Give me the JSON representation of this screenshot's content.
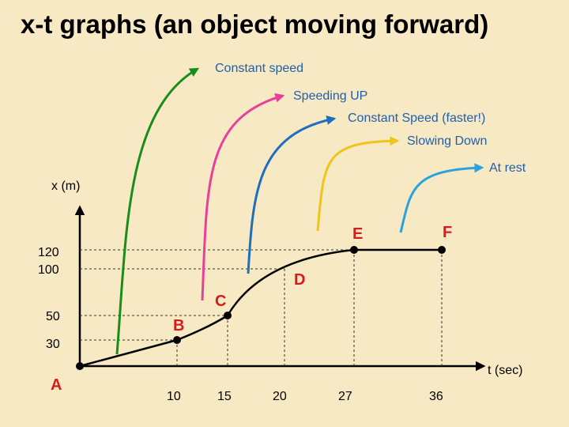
{
  "title": "x-t graphs (an object moving forward)",
  "colors": {
    "background": "#f7e9c4",
    "constant_speed": "#1a8c1a",
    "speeding_up": "#e8409a",
    "constant_speed_faster": "#1f6fbd",
    "slowing_down": "#f0c419",
    "at_rest": "#29a3e0",
    "callout_text": "#1f5fae",
    "point_label": "#d41c1c"
  },
  "callouts": {
    "constant_speed": "Constant speed",
    "speeding_up": "Speeding UP",
    "constant_speed_faster": "Constant Speed (faster!)",
    "slowing_down": "Slowing Down",
    "at_rest": "At rest"
  },
  "axes": {
    "y_label": "x (m)",
    "x_label": "t (sec)",
    "y_ticks": [
      "120",
      "100",
      "50",
      "30"
    ],
    "x_ticks": [
      "10",
      "15",
      "20",
      "27",
      "36"
    ]
  },
  "points": {
    "A": "A",
    "B": "B",
    "C": "C",
    "D": "D",
    "E": "E",
    "F": "F"
  }
}
